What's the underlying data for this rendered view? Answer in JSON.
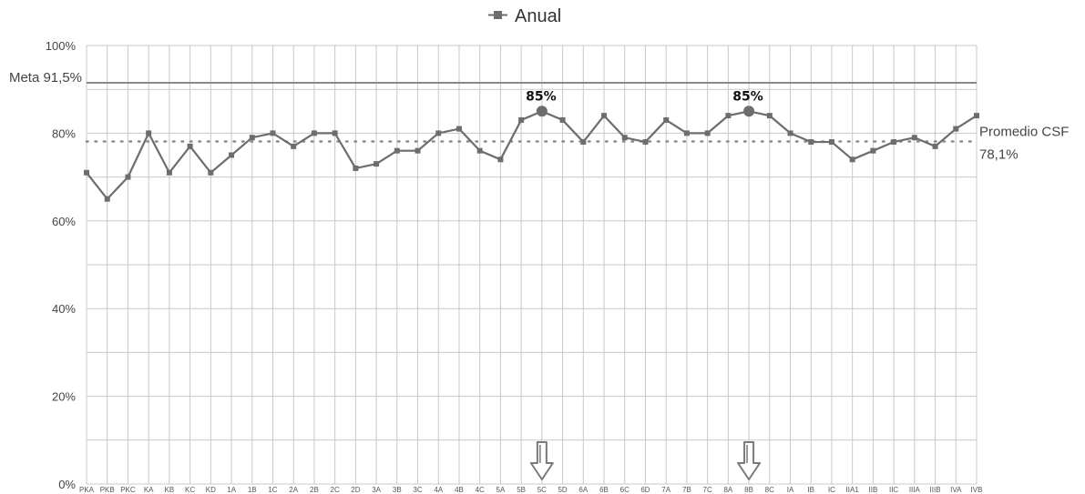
{
  "legend": {
    "label": "Anual",
    "color": "#6d6d6d"
  },
  "colors": {
    "line": "#6d6d6d",
    "grid": "#c8c8c8",
    "meta_line": "#888888",
    "average_line": "#8a8a8a",
    "arrow": "#7a7a7a"
  },
  "chart_data": {
    "type": "line",
    "categories": [
      "PKA",
      "PKB",
      "PKC",
      "KA",
      "KB",
      "KC",
      "KD",
      "1A",
      "1B",
      "1C",
      "2A",
      "2B",
      "2C",
      "2D",
      "3A",
      "3B",
      "3C",
      "4A",
      "4B",
      "4C",
      "5A",
      "5B",
      "5C",
      "5D",
      "6A",
      "6B",
      "6C",
      "6D",
      "7A",
      "7B",
      "7C",
      "8A",
      "8B",
      "8C",
      "IA",
      "IB",
      "IC",
      "IIA1",
      "IIB",
      "IIC",
      "IIIA",
      "IIIB",
      "IVA",
      "IVB"
    ],
    "series": [
      {
        "name": "Anual",
        "values": [
          71,
          65,
          70,
          80,
          71,
          77,
          71,
          75,
          79,
          80,
          77,
          80,
          80,
          72,
          73,
          76,
          76,
          80,
          81,
          76,
          74,
          83,
          85,
          83,
          78,
          84,
          79,
          78,
          83,
          80,
          80,
          84,
          85,
          84,
          80,
          78,
          78,
          74,
          76,
          78,
          79,
          77,
          81,
          84
        ]
      }
    ],
    "ylim": [
      0,
      100
    ],
    "yticks": [
      "0%",
      "20%",
      "40%",
      "60%",
      "80%",
      "100%"
    ],
    "ytick_values": [
      0,
      20,
      40,
      60,
      80,
      100
    ],
    "reference_lines": [
      {
        "label": "Meta 91,5%",
        "value": 91.5,
        "style": "solid"
      },
      {
        "label": "Promedio CSF",
        "value_label": "78,1%",
        "value": 78.1,
        "style": "dotted"
      }
    ],
    "annotations": [
      {
        "category": "5C",
        "text": "85%"
      },
      {
        "category": "8B",
        "text": "85%"
      }
    ],
    "arrows": [
      "5C",
      "8B"
    ],
    "grid": true,
    "legend_position": "top"
  }
}
